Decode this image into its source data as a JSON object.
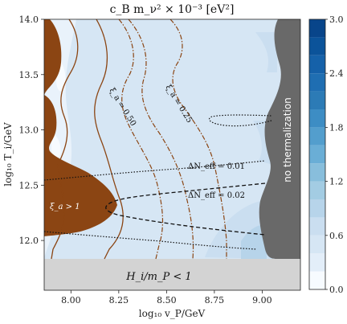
{
  "chart_data": {
    "type": "heatmap",
    "title": "c_B m_ν² × 10⁻³ [eV²]",
    "xlabel": "log₁₀ v_P/GeV",
    "ylabel": "log₁₀ T_i/GeV",
    "xlim": [
      7.86,
      9.2
    ],
    "ylim": [
      11.55,
      14.0
    ],
    "x_ticks": [
      "8.00",
      "8.25",
      "8.50",
      "8.75",
      "9.00"
    ],
    "x_tick_values": [
      8.0,
      8.25,
      8.5,
      8.75,
      9.0
    ],
    "y_ticks": [
      "12.0",
      "12.5",
      "13.0",
      "13.5",
      "14.0"
    ],
    "y_tick_values": [
      12.0,
      12.5,
      13.0,
      13.5,
      14.0
    ],
    "colorbar": {
      "ticks": [
        "0.0",
        "0.6",
        "1.2",
        "1.8",
        "2.4",
        "3.0"
      ],
      "tick_values": [
        0.0,
        0.6,
        1.2,
        1.8,
        2.4,
        3.0
      ],
      "min": 0.0,
      "max": 3.0,
      "levels": [
        0.0,
        0.2,
        0.4,
        0.6,
        0.8,
        1.0,
        1.2,
        1.4,
        1.6,
        1.8,
        2.0,
        2.2,
        2.4,
        2.6,
        2.8,
        3.0
      ],
      "colors": [
        "#f7fbff",
        "#e3eef9",
        "#d6e6f4",
        "#cadef0",
        "#b7d4ea",
        "#a3cce3",
        "#88bedc",
        "#6aaed6",
        "#539ecd",
        "#3d8dc4",
        "#2c7bb6",
        "#1f6eb2",
        "#1561a9",
        "#0b539a",
        "#08458a"
      ]
    },
    "background_value": 0.3,
    "regions": [
      {
        "label": "ξ_a > 1",
        "color": "#8b4513"
      },
      {
        "label": "H_i/m_P < 1",
        "color": "#d3d3d3"
      },
      {
        "label": "no thermalization",
        "color": "#696969"
      }
    ],
    "contour_labels": [
      {
        "text": "ξ_a = 0.50",
        "style": "dash-dot",
        "color": "#8b4513"
      },
      {
        "text": "ξ_a = 0.25",
        "style": "dash-dot",
        "color": "#8b4513"
      },
      {
        "text": "ΔN_eff = 0.01",
        "style": "dotted",
        "color": "#000000"
      },
      {
        "text": "ΔN_eff = 0.02",
        "style": "dashed",
        "color": "#000000"
      }
    ]
  }
}
